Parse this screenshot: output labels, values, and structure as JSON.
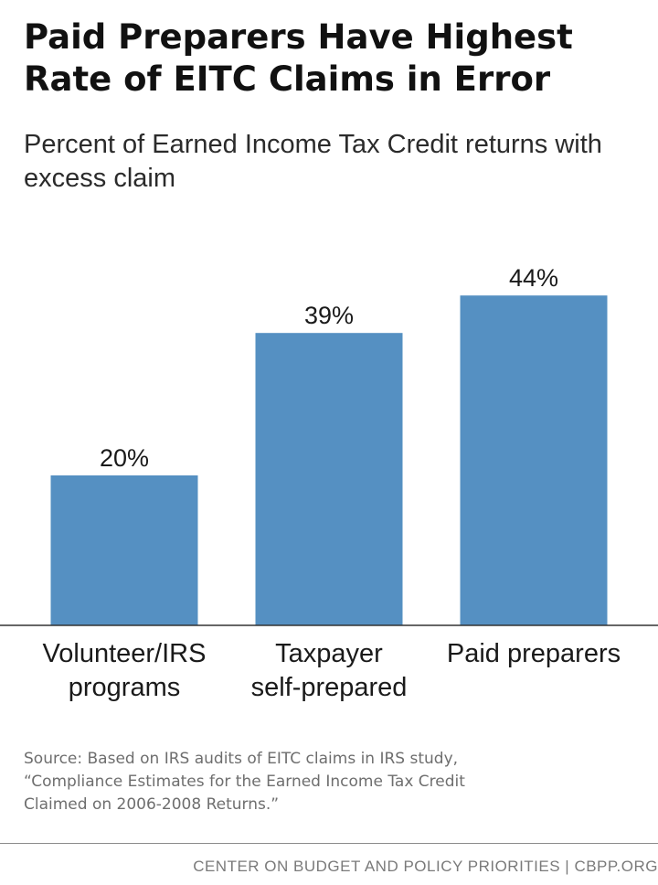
{
  "chart_data": {
    "type": "bar",
    "title": "Paid Preparers Have Highest Rate of EITC Claims in Error",
    "subtitle": "Percent of Earned Income Tax Credit returns with excess claim",
    "categories": [
      [
        "Volunteer/IRS",
        "programs"
      ],
      [
        "Taxpayer",
        "self-prepared"
      ],
      [
        "Paid preparers"
      ]
    ],
    "values": [
      20,
      39,
      44
    ],
    "data_labels": [
      "20%",
      "39%",
      "44%"
    ],
    "unit": "%",
    "ylim": [
      0,
      50
    ],
    "grid": false,
    "legend": "none",
    "bar_color": "#5590c2",
    "axis_color": "#333333"
  },
  "source": [
    "Source: Based on IRS audits of EITC claims in IRS study,",
    "“Compliance Estimates for the Earned Income Tax Credit",
    "Claimed on 2006-2008 Returns.”"
  ],
  "footer": "CENTER ON BUDGET AND POLICY PRIORITIES | CBPP.ORG"
}
